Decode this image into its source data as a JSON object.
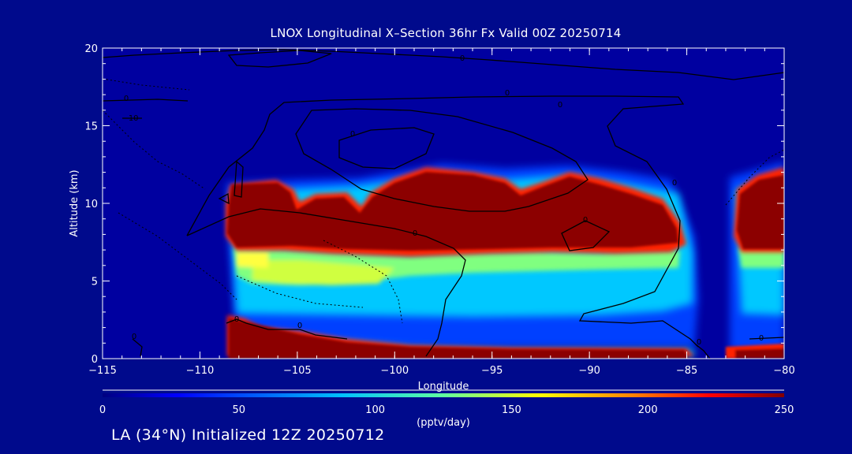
{
  "chart_data": {
    "type": "heatmap",
    "title": "LNOX Longitudinal X–Section 36hr  Fx Valid 00Z 20250714",
    "xlabel": "Longitude",
    "ylabel": "Altitude (km)",
    "xlim": [
      -115,
      -80
    ],
    "ylim": [
      0,
      20
    ],
    "x_ticks": [
      "−115",
      "−110",
      "−105",
      "−100",
      "−95",
      "−90",
      "−85",
      "−80"
    ],
    "x_tick_values": [
      -115,
      -110,
      -105,
      -100,
      -95,
      -90,
      -85,
      -80
    ],
    "y_ticks": [
      "0",
      "5",
      "10",
      "15",
      "20"
    ],
    "y_tick_values": [
      0,
      5,
      10,
      15,
      20
    ],
    "colorbar": {
      "range": [
        0,
        250
      ],
      "ticks": [
        "0",
        "50",
        "100",
        "150",
        "200",
        "250"
      ],
      "tick_values": [
        0,
        50,
        100,
        150,
        200,
        250
      ],
      "label": "(pptv/day)",
      "colormap": [
        "#000080",
        "#0000ff",
        "#00c0ff",
        "#60ffa0",
        "#ffff00",
        "#ff8000",
        "#ff0000",
        "#800000"
      ]
    },
    "features": [
      {
        "name": "upper LNOX layer",
        "lon": [
          -108.8,
          -85.5
        ],
        "alt_km": [
          6.5,
          11.5
        ],
        "peak": 250
      },
      {
        "name": "upper LNOX layer (east edge)",
        "lon": [
          -82.8,
          -80
        ],
        "alt_km": [
          6.5,
          11.5
        ],
        "peak": 250
      },
      {
        "name": "mid-level LNOX",
        "lon": [
          -108.5,
          -84.5
        ],
        "alt_km": [
          2.5,
          6.5
        ],
        "peak": 140
      },
      {
        "name": "near-surface LNOX",
        "lon": [
          -108.5,
          -84.5
        ],
        "alt_km": [
          0,
          2.5
        ],
        "peak": 250
      },
      {
        "name": "near-surface LNOX (east edge)",
        "lon": [
          -82.5,
          -80
        ],
        "alt_km": [
          0,
          0.8
        ],
        "peak": 250
      }
    ],
    "contour_labels": [
      "0",
      "0",
      "0",
      "0",
      "0",
      "0",
      "0",
      "0",
      "0",
      "0",
      "0",
      "0",
      "0",
      "−10"
    ]
  },
  "footer": {
    "text": "LA (34°N) Initialized 12Z 20250712"
  },
  "colors": {
    "background": "#000a8c",
    "axes_fill": "#0000a0",
    "foreground": "#ffffff",
    "contour": "#000000"
  }
}
